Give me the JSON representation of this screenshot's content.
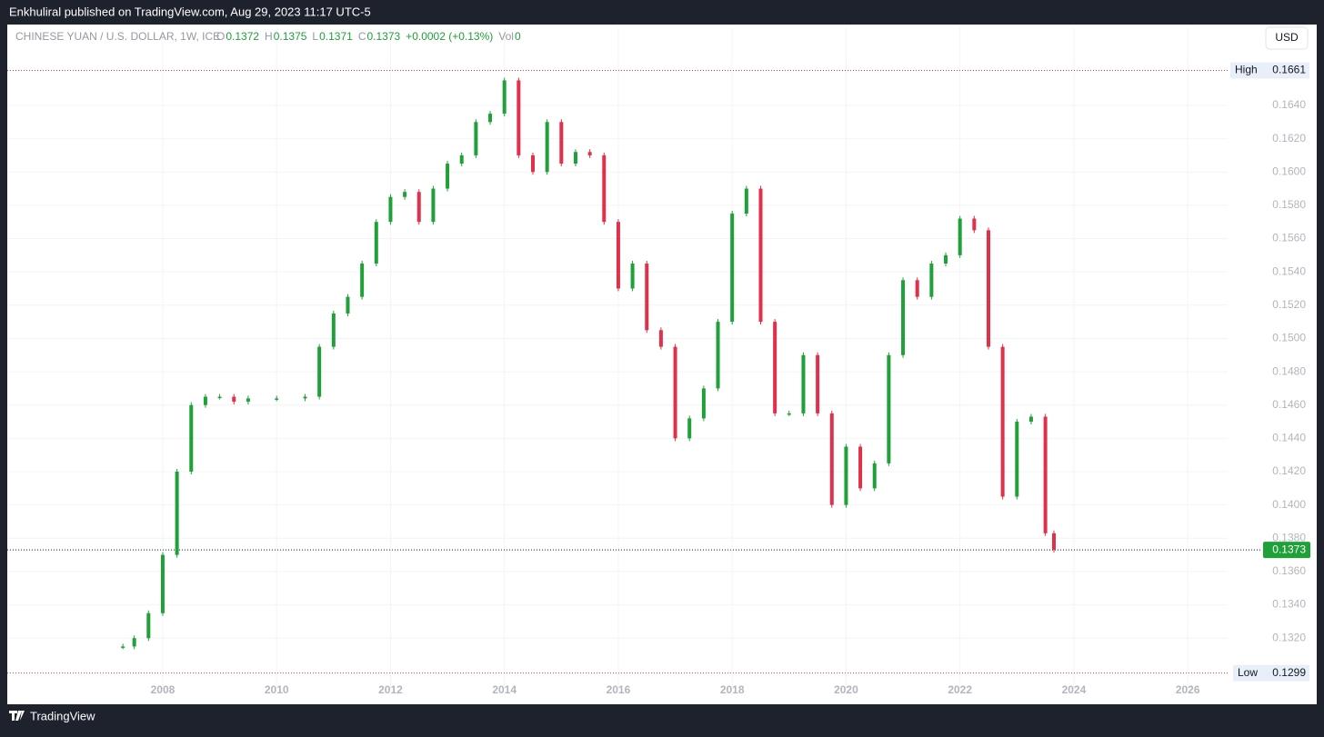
{
  "header": {
    "publisher": "Enkhuliral published on TradingView.com, Aug 29, 2023 11:17 UTC-5"
  },
  "footer": {
    "brand": "TradingView"
  },
  "chart_data": {
    "type": "candlestick",
    "title": "CHINESE YUAN / U.S. DOLLAR, 1W, ICE",
    "legend": {
      "o_label": "O",
      "open": 0.1372,
      "h_label": "H",
      "high": 0.1375,
      "l_label": "L",
      "low": 0.1371,
      "c_label": "C",
      "close": 0.1373,
      "change": "+0.0002 (+0.13%)",
      "vol_label": "Vol",
      "volume": 0
    },
    "currency": "USD",
    "high_label": "High",
    "high_value": 0.1661,
    "low_label": "Low",
    "low_value": 0.1299,
    "last_value": 0.1373,
    "up_color": "#1fa038",
    "down_color": "#e0304a",
    "x": [
      2007.3,
      2007.5,
      2007.75,
      2008,
      2008.25,
      2008.5,
      2008.75,
      2009,
      2009.25,
      2009.5,
      2010,
      2010.5,
      2010.75,
      2011,
      2011.25,
      2011.5,
      2011.75,
      2012,
      2012.25,
      2012.5,
      2012.75,
      2013,
      2013.25,
      2013.5,
      2013.75,
      2014,
      2014.25,
      2014.5,
      2014.75,
      2015,
      2015.25,
      2015.5,
      2015.75,
      2016,
      2016.25,
      2016.5,
      2016.75,
      2017,
      2017.25,
      2017.5,
      2017.75,
      2018,
      2018.25,
      2018.5,
      2018.75,
      2019,
      2019.25,
      2019.5,
      2019.75,
      2020,
      2020.25,
      2020.5,
      2020.75,
      2021,
      2021.25,
      2021.5,
      2021.75,
      2022,
      2022.25,
      2022.5,
      2022.75,
      2023,
      2023.25,
      2023.5,
      2023.65
    ],
    "close": [
      0.1315,
      0.132,
      0.1335,
      0.137,
      0.142,
      0.146,
      0.1465,
      0.1465,
      0.1462,
      0.1464,
      0.1464,
      0.1465,
      0.1495,
      0.1515,
      0.1525,
      0.1545,
      0.157,
      0.1585,
      0.1588,
      0.157,
      0.159,
      0.1605,
      0.161,
      0.163,
      0.1635,
      0.1655,
      0.161,
      0.16,
      0.163,
      0.1605,
      0.1612,
      0.161,
      0.157,
      0.153,
      0.1545,
      0.1505,
      0.1495,
      0.144,
      0.1452,
      0.147,
      0.151,
      0.1575,
      0.159,
      0.151,
      0.1455,
      0.1455,
      0.149,
      0.1455,
      0.14,
      0.1435,
      0.141,
      0.1425,
      0.149,
      0.1535,
      0.1525,
      0.1545,
      0.155,
      0.1572,
      0.1565,
      0.1495,
      0.1405,
      0.145,
      0.1453,
      0.1383,
      0.1373
    ],
    "xlim": [
      2005.27,
      2026.7
    ],
    "xticks": [
      2008,
      2010,
      2012,
      2014,
      2016,
      2018,
      2020,
      2022,
      2024,
      2026
    ],
    "ylim": [
      0.1283,
      0.1676
    ],
    "yticks": [
      {
        "value": 0.132,
        "label": "0.1320"
      },
      {
        "value": 0.134,
        "label": "0.1340"
      },
      {
        "value": 0.136,
        "label": "0.1360"
      },
      {
        "value": 0.138,
        "label": "0.1380"
      },
      {
        "value": 0.14,
        "label": "0.1400"
      },
      {
        "value": 0.142,
        "label": "0.1420"
      },
      {
        "value": 0.144,
        "label": "0.1440"
      },
      {
        "value": 0.146,
        "label": "0.1460"
      },
      {
        "value": 0.148,
        "label": "0.1480"
      },
      {
        "value": 0.15,
        "label": "0.1500"
      },
      {
        "value": 0.152,
        "label": "0.1520"
      },
      {
        "value": 0.154,
        "label": "0.1540"
      },
      {
        "value": 0.156,
        "label": "0.1560"
      },
      {
        "value": 0.158,
        "label": "0.1580"
      },
      {
        "value": 0.16,
        "label": "0.1600"
      },
      {
        "value": 0.162,
        "label": "0.1620"
      },
      {
        "value": 0.164,
        "label": "0.1640"
      }
    ],
    "grid": true
  }
}
